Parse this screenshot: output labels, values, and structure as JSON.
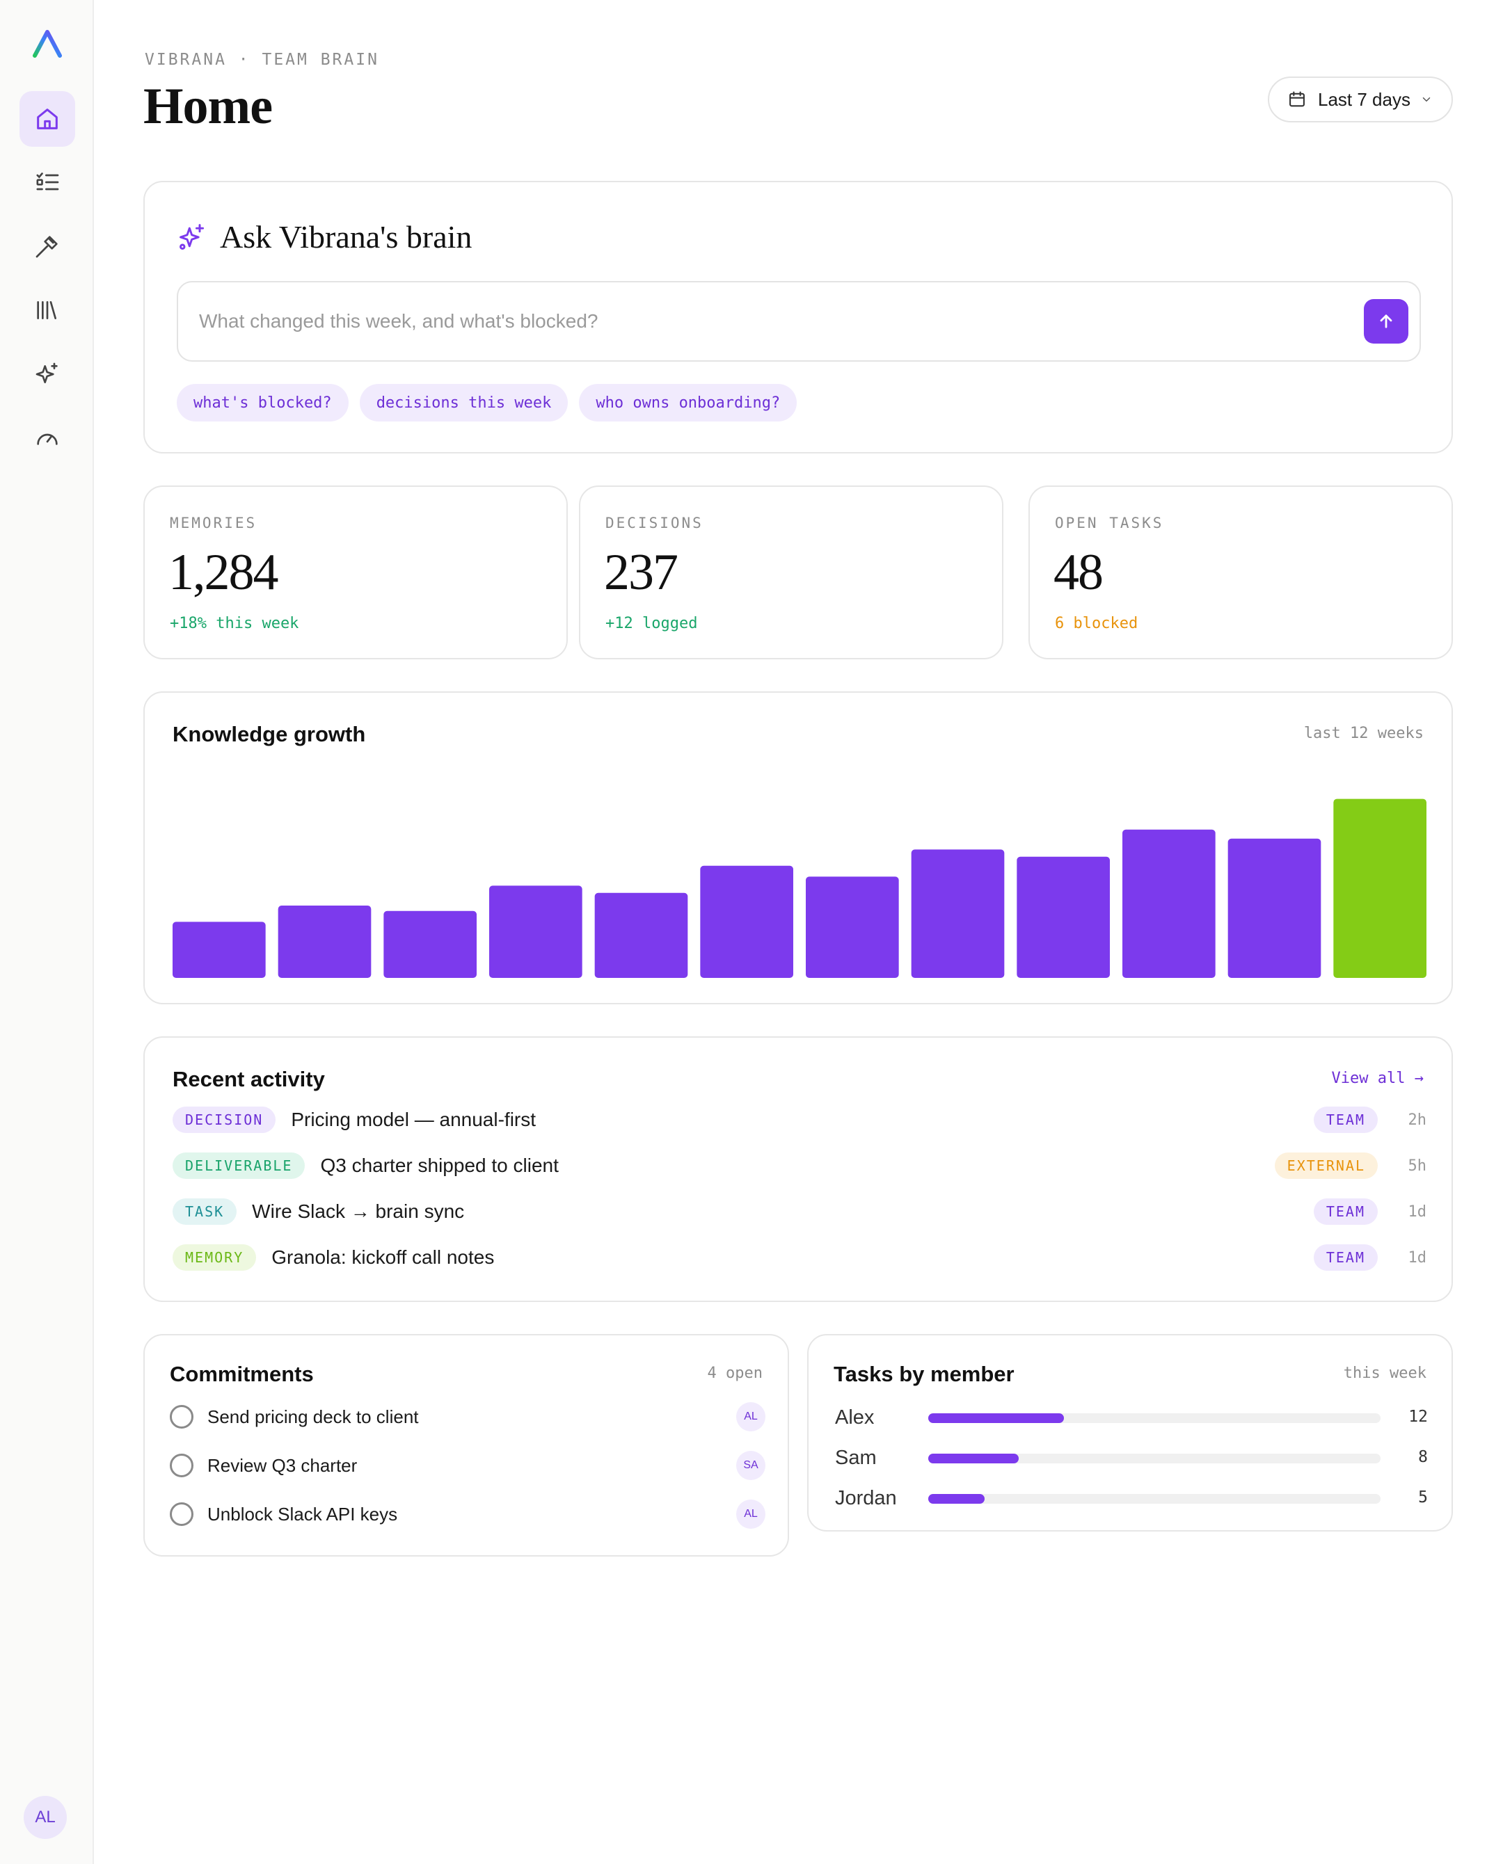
{
  "sidebar": {
    "items": [
      {
        "icon": "home-icon",
        "active": true
      },
      {
        "icon": "task-list-icon",
        "active": false
      },
      {
        "icon": "hammer-icon",
        "active": false
      },
      {
        "icon": "library-icon",
        "active": false
      },
      {
        "icon": "sparkles-icon",
        "active": false
      },
      {
        "icon": "gauge-icon",
        "active": false
      }
    ],
    "user_initials": "AL"
  },
  "header": {
    "breadcrumb": "VIBRANA · TEAM BRAIN",
    "title": "Home",
    "range_label": "Last 7 days"
  },
  "ask": {
    "title": "Ask Vibrana's brain",
    "placeholder": "What changed this week, and what's blocked?",
    "chips": [
      "what's blocked?",
      "decisions this week",
      "who owns onboarding?"
    ]
  },
  "stats": [
    {
      "label": "MEMORIES",
      "value": "1,284",
      "delta": "+18% this week",
      "tone": "green"
    },
    {
      "label": "DECISIONS",
      "value": "237",
      "delta": "+12 logged",
      "tone": "green"
    },
    {
      "label": "OPEN TASKS",
      "value": "48",
      "delta": "6 blocked",
      "tone": "orange"
    }
  ],
  "growth": {
    "title": "Knowledge growth",
    "meta": "last 12 weeks"
  },
  "chart_data": {
    "type": "bar",
    "title": "Knowledge growth",
    "categories": [
      "1",
      "2",
      "3",
      "4",
      "5",
      "6",
      "7",
      "8",
      "9",
      "10",
      "11",
      "12"
    ],
    "values": [
      31,
      40,
      37,
      51,
      47,
      62,
      56,
      71,
      67,
      82,
      77,
      99
    ],
    "ylim": [
      0,
      100
    ],
    "colors": {
      "default": "#7c3aed",
      "highlight": "#84cc16"
    },
    "highlight_index": 11,
    "grid": false
  },
  "activity": {
    "title": "Recent activity",
    "view_all": "View all →",
    "rows": [
      {
        "tag": "DECISION",
        "tag_kind": "decision",
        "title": "Pricing model — annual-first",
        "audience": "TEAM",
        "aud_kind": "team",
        "ago": "2h"
      },
      {
        "tag": "DELIVERABLE",
        "tag_kind": "deliverable",
        "title": "Q3 charter shipped to client",
        "audience": "EXTERNAL",
        "aud_kind": "ext",
        "ago": "5h"
      },
      {
        "tag": "TASK",
        "tag_kind": "task",
        "title": "Wire Slack → brain sync",
        "audience": "TEAM",
        "aud_kind": "team",
        "ago": "1d"
      },
      {
        "tag": "MEMORY",
        "tag_kind": "memory",
        "title": "Granola: kickoff call notes",
        "audience": "TEAM",
        "aud_kind": "team",
        "ago": "1d"
      }
    ]
  },
  "commitments": {
    "title": "Commitments",
    "meta": "4 open",
    "items": [
      {
        "text": "Send pricing deck to client",
        "owner": "AL"
      },
      {
        "text": "Review Q3 charter",
        "owner": "SA"
      },
      {
        "text": "Unblock Slack API keys",
        "owner": "AL"
      }
    ]
  },
  "tasks_by_member": {
    "title": "Tasks by member",
    "meta": "this week",
    "max": 40,
    "members": [
      {
        "name": "Alex",
        "count": 12
      },
      {
        "name": "Sam",
        "count": 8
      },
      {
        "name": "Jordan",
        "count": 5
      }
    ]
  }
}
